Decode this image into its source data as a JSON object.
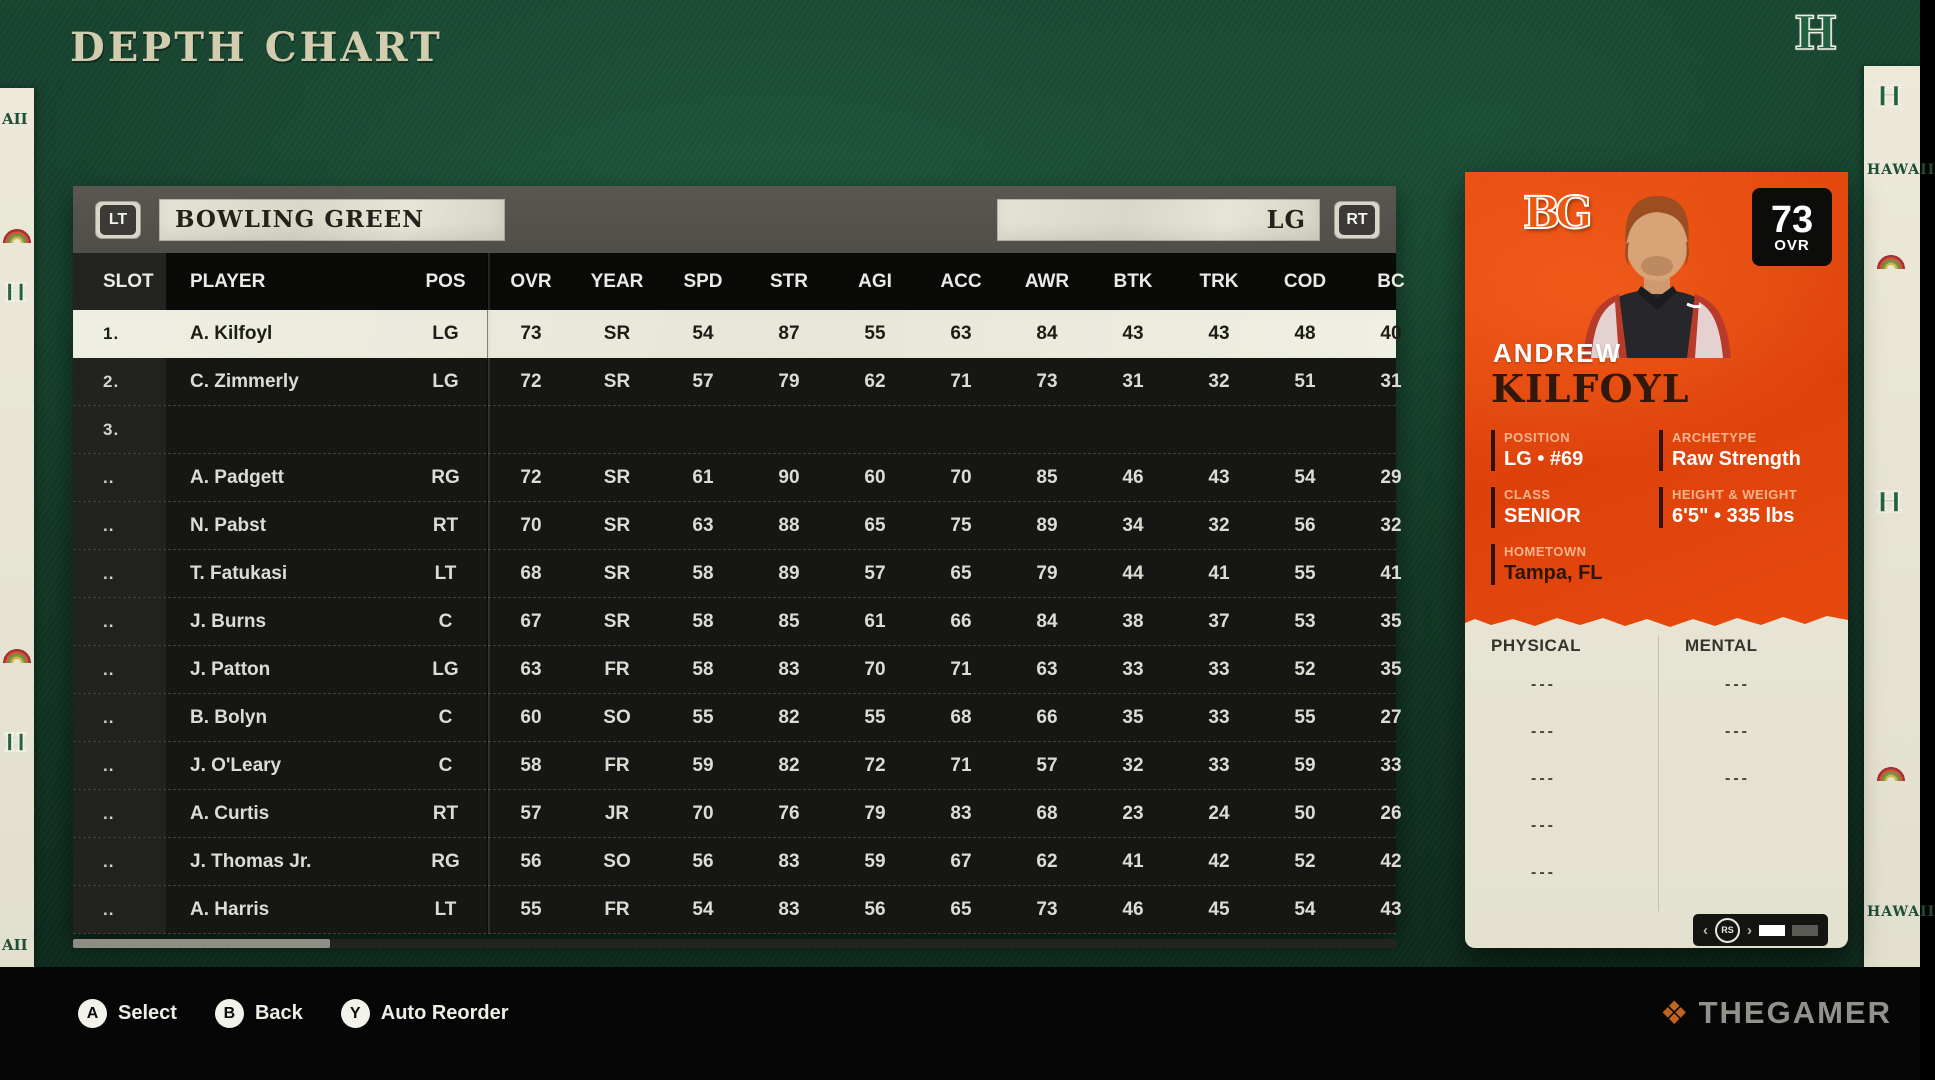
{
  "title": "DEPTH CHART",
  "panel": {
    "prev_button": "LT",
    "next_button": "RT",
    "team_name": "BOWLING GREEN",
    "position_label": "LG",
    "columns": [
      "SLOT",
      "PLAYER",
      "POS",
      "OVR",
      "YEAR",
      "SPD",
      "STR",
      "AGI",
      "ACC",
      "AWR",
      "BTK",
      "TRK",
      "COD",
      "BC"
    ],
    "rows": [
      {
        "slot": "1.",
        "player": "A. Kilfoyl",
        "pos": "LG",
        "selected": true,
        "stats": [
          "73",
          "SR",
          "54",
          "87",
          "55",
          "63",
          "84",
          "43",
          "43",
          "48",
          "40"
        ]
      },
      {
        "slot": "2.",
        "player": "C. Zimmerly",
        "pos": "LG",
        "stats": [
          "72",
          "SR",
          "57",
          "79",
          "62",
          "71",
          "73",
          "31",
          "32",
          "51",
          "31"
        ]
      },
      {
        "slot": "3.",
        "player": "",
        "pos": "",
        "stats": []
      },
      {
        "slot": "..",
        "player": "A. Padgett",
        "pos": "RG",
        "stats": [
          "72",
          "SR",
          "61",
          "90",
          "60",
          "70",
          "85",
          "46",
          "43",
          "54",
          "29"
        ]
      },
      {
        "slot": "..",
        "player": "N. Pabst",
        "pos": "RT",
        "stats": [
          "70",
          "SR",
          "63",
          "88",
          "65",
          "75",
          "89",
          "34",
          "32",
          "56",
          "32"
        ]
      },
      {
        "slot": "..",
        "player": "T. Fatukasi",
        "pos": "LT",
        "stats": [
          "68",
          "SR",
          "58",
          "89",
          "57",
          "65",
          "79",
          "44",
          "41",
          "55",
          "41"
        ]
      },
      {
        "slot": "..",
        "player": "J. Burns",
        "pos": "C",
        "stats": [
          "67",
          "SR",
          "58",
          "85",
          "61",
          "66",
          "84",
          "38",
          "37",
          "53",
          "35"
        ]
      },
      {
        "slot": "..",
        "player": "J. Patton",
        "pos": "LG",
        "stats": [
          "63",
          "FR",
          "58",
          "83",
          "70",
          "71",
          "63",
          "33",
          "33",
          "52",
          "35"
        ]
      },
      {
        "slot": "..",
        "player": "B. Bolyn",
        "pos": "C",
        "stats": [
          "60",
          "SO",
          "55",
          "82",
          "55",
          "68",
          "66",
          "35",
          "33",
          "55",
          "27"
        ]
      },
      {
        "slot": "..",
        "player": "J. O'Leary",
        "pos": "C",
        "stats": [
          "58",
          "FR",
          "59",
          "82",
          "72",
          "71",
          "57",
          "32",
          "33",
          "59",
          "33"
        ]
      },
      {
        "slot": "..",
        "player": "A. Curtis",
        "pos": "RT",
        "stats": [
          "57",
          "JR",
          "70",
          "76",
          "79",
          "83",
          "68",
          "23",
          "24",
          "50",
          "26"
        ]
      },
      {
        "slot": "..",
        "player": "J. Thomas Jr.",
        "pos": "RG",
        "stats": [
          "56",
          "SO",
          "56",
          "83",
          "59",
          "67",
          "62",
          "41",
          "42",
          "52",
          "42"
        ]
      },
      {
        "slot": "..",
        "player": "A. Harris",
        "pos": "LT",
        "stats": [
          "55",
          "FR",
          "54",
          "83",
          "56",
          "65",
          "73",
          "46",
          "45",
          "54",
          "43"
        ]
      }
    ]
  },
  "card": {
    "team_logo": "BG",
    "overall": "73",
    "overall_label": "OVR",
    "first_name": "ANDREW",
    "last_name": "KILFOYL",
    "details": [
      {
        "label": "POSITION",
        "value": "LG • #69"
      },
      {
        "label": "ARCHETYPE",
        "value": "Raw Strength"
      },
      {
        "label": "CLASS",
        "value": "SENIOR"
      },
      {
        "label": "HEIGHT & WEIGHT",
        "value": "6'5\" • 335 lbs"
      },
      {
        "label": "HOMETOWN",
        "value": "Tampa, FL",
        "dark": true
      }
    ],
    "sections": [
      {
        "title": "PHYSICAL",
        "rows": [
          "---",
          "---",
          "---",
          "---",
          "---"
        ]
      },
      {
        "title": "MENTAL",
        "rows": [
          "---",
          "---",
          "---"
        ]
      }
    ],
    "pager": {
      "stick": "RS"
    }
  },
  "footer": {
    "hints": [
      {
        "button": "A",
        "label": "Select"
      },
      {
        "button": "B",
        "label": "Back"
      },
      {
        "button": "Y",
        "label": "Auto Reorder"
      }
    ],
    "brand": "THEGAMER"
  },
  "decor": {
    "wordmark": "HAWAII",
    "monogram": "H",
    "left_fragment": "AII"
  },
  "colors": {
    "card_orange": "#E8490E",
    "paper_cream": "#E7E4D4",
    "field_green": "#174430",
    "selected_row": "#EFEEE2",
    "brand_orange": "#C2641F"
  }
}
